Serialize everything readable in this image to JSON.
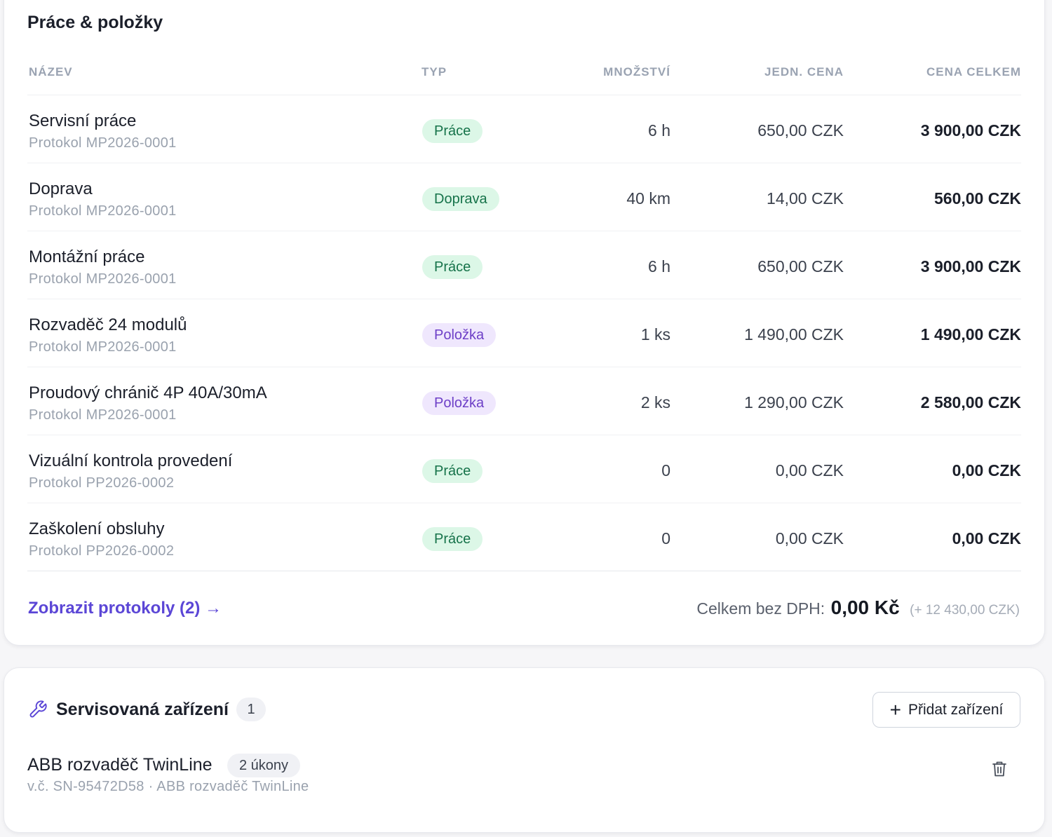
{
  "items_card": {
    "title": "Práce & položky",
    "columns": {
      "name": "NÁZEV",
      "type": "TYP",
      "qty": "MNOŽSTVÍ",
      "unit_price": "JEDN. CENA",
      "total": "CENA CELKEM"
    },
    "rows": [
      {
        "name": "Servisní práce",
        "protocol": "Protokol MP2026-0001",
        "type": "Práce",
        "type_color": "green",
        "qty": "6 h",
        "unit_price": "650,00 CZK",
        "total": "3 900,00 CZK"
      },
      {
        "name": "Doprava",
        "protocol": "Protokol MP2026-0001",
        "type": "Doprava",
        "type_color": "green",
        "qty": "40 km",
        "unit_price": "14,00 CZK",
        "total": "560,00 CZK"
      },
      {
        "name": "Montážní práce",
        "protocol": "Protokol MP2026-0001",
        "type": "Práce",
        "type_color": "green",
        "qty": "6 h",
        "unit_price": "650,00 CZK",
        "total": "3 900,00 CZK"
      },
      {
        "name": "Rozvaděč 24 modulů",
        "protocol": "Protokol MP2026-0001",
        "type": "Položka",
        "type_color": "purple",
        "qty": "1 ks",
        "unit_price": "1 490,00 CZK",
        "total": "1 490,00 CZK"
      },
      {
        "name": "Proudový chránič 4P 40A/30mA",
        "protocol": "Protokol MP2026-0001",
        "type": "Položka",
        "type_color": "purple",
        "qty": "2 ks",
        "unit_price": "1 290,00 CZK",
        "total": "2 580,00 CZK"
      },
      {
        "name": "Vizuální kontrola provedení",
        "protocol": "Protokol PP2026-0002",
        "type": "Práce",
        "type_color": "green",
        "qty": "0",
        "unit_price": "0,00 CZK",
        "total": "0,00 CZK"
      },
      {
        "name": "Zaškolení obsluhy",
        "protocol": "Protokol PP2026-0002",
        "type": "Práce",
        "type_color": "green",
        "qty": "0",
        "unit_price": "0,00 CZK",
        "total": "0,00 CZK"
      }
    ],
    "footer": {
      "link": "Zobrazit protokoly (2) →",
      "total_label": "Celkem bez DPH:",
      "total_value": "0,00 Kč",
      "total_extra": "(+ 12 430,00 CZK)"
    }
  },
  "devices_card": {
    "icon": "wrench-icon",
    "title": "Servisovaná zařízení",
    "count": "1",
    "add_button": "Přidat zařízení",
    "device": {
      "name": "ABB rozvaděč TwinLine",
      "ops_badge": "2 úkony",
      "subtitle": "v.č. SN-95472D58 · ABB rozvaděč TwinLine"
    }
  },
  "colors": {
    "accent": "#5b46d6",
    "badge_green_bg": "#dcf7e7",
    "badge_green_text": "#16734a",
    "badge_purple_bg": "#efe7fd",
    "badge_purple_text": "#6d3fc7"
  }
}
